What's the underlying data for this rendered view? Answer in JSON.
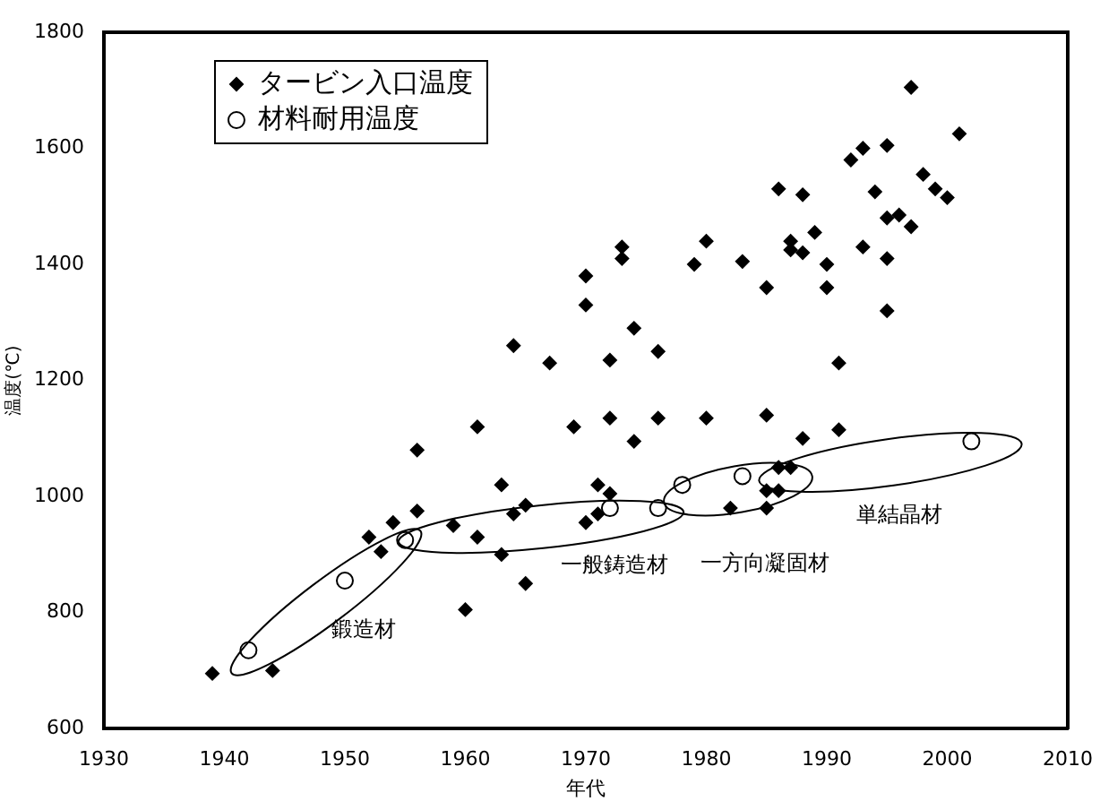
{
  "chart_data": {
    "type": "scatter",
    "xlabel": "年代",
    "ylabel": "温度(℃)",
    "xlim": [
      1930,
      2010
    ],
    "xticks": [
      1930,
      1940,
      1950,
      1960,
      1970,
      1980,
      1990,
      2000,
      2010
    ],
    "ylim": [
      600,
      1800
    ],
    "yticks": [
      600,
      800,
      1000,
      1200,
      1400,
      1600,
      1800
    ],
    "grid": false,
    "legend": "top left",
    "series": [
      {
        "name": "タービン入口温度",
        "color": "#000000",
        "marker": "diamond",
        "x": [
          1939,
          1944,
          1960,
          1965,
          1963,
          1953,
          1952,
          1961,
          1970,
          1970,
          1964,
          1967,
          1961,
          1969,
          1956,
          1963,
          1965,
          1964,
          1956,
          1954,
          1959,
          1970,
          1997,
          2001,
          1993,
          1995,
          1992,
          1998,
          1999,
          2000,
          1986,
          1988,
          1994,
          1995,
          1996,
          1997,
          1989,
          1987,
          1987,
          1988,
          1993,
          1990,
          1995,
          1973,
          1973,
          1980,
          1979,
          1983,
          1985,
          1990,
          1995,
          1974,
          1976,
          1972,
          1991,
          1972,
          1976,
          1980,
          1985,
          1974,
          1988,
          1991,
          1986,
          1987,
          1971,
          1972,
          1971,
          1982,
          1985,
          1986,
          1985
        ],
        "values": [
          695,
          700,
          805,
          850,
          900,
          905,
          930,
          930,
          1380,
          1330,
          1260,
          1230,
          1120,
          1120,
          1080,
          1020,
          985,
          970,
          975,
          955,
          950,
          955,
          1705,
          1625,
          1600,
          1605,
          1580,
          1555,
          1530,
          1515,
          1530,
          1520,
          1525,
          1480,
          1485,
          1465,
          1455,
          1440,
          1425,
          1420,
          1430,
          1400,
          1410,
          1430,
          1410,
          1440,
          1400,
          1405,
          1360,
          1360,
          1320,
          1290,
          1250,
          1235,
          1230,
          1135,
          1135,
          1135,
          1140,
          1095,
          1100,
          1115,
          1050,
          1050,
          1020,
          1005,
          970,
          980,
          1010,
          1010,
          980
        ]
      },
      {
        "name": "材料耐用温度",
        "color": "#000000",
        "marker": "circle",
        "x": [
          1942,
          1950,
          1955,
          1972,
          1976,
          1978,
          1983,
          2002
        ],
        "values": [
          735,
          855,
          925,
          980,
          980,
          1020,
          1035,
          1095
        ]
      }
    ],
    "annotations": [
      "鍛造材",
      "一般鋳造材",
      "一方向凝固材",
      "単結晶材"
    ]
  }
}
